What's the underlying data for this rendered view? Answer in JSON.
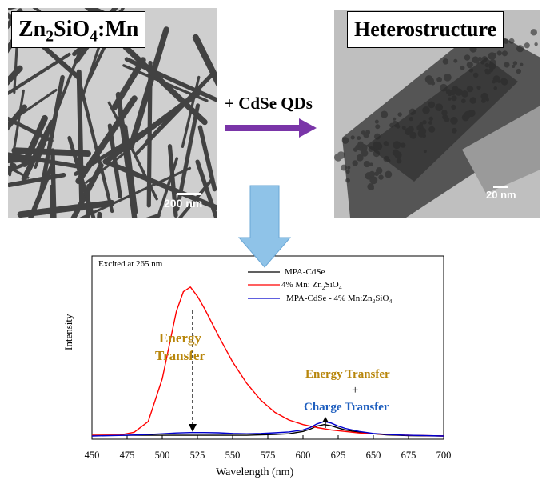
{
  "left_panel": {
    "label_main": "Zn",
    "label_sub1": "2",
    "label_mid": "SiO",
    "label_sub2": "4",
    "label_tail": ":Mn",
    "scale_text": "200 nm"
  },
  "right_panel": {
    "label": "Heterostructure",
    "scale_text": "20 nm"
  },
  "reaction": {
    "text": "+ CdSe QDs",
    "arrow_color": "#7a35a8"
  },
  "down_arrow_color": "#8fc3e8",
  "annotations": {
    "energy_transfer_line1": "Energy",
    "energy_transfer_line2": "Transfer",
    "energy_transfer_combined": "Energy Transfer",
    "plus": "+",
    "charge_transfer": "Charge Transfer"
  },
  "chart_data": {
    "type": "line",
    "title": "",
    "annotation": "Excited at 265 nm",
    "xlabel": "Wavelength (nm)",
    "ylabel": "Intensity",
    "xlim": [
      450,
      700
    ],
    "ylim": [
      0,
      1.0
    ],
    "xticks": [
      "450",
      "475",
      "500",
      "525",
      "550",
      "575",
      "600",
      "625",
      "650",
      "675",
      "700"
    ],
    "legend_position": "top-right",
    "series": [
      {
        "name": "MPA-CdSe",
        "color": "#000000",
        "x": [
          450,
          475,
          500,
          520,
          540,
          560,
          580,
          590,
          600,
          605,
          610,
          615,
          620,
          625,
          630,
          640,
          650,
          660,
          675,
          700
        ],
        "y": [
          0.01,
          0.01,
          0.01,
          0.01,
          0.01,
          0.01,
          0.015,
          0.02,
          0.035,
          0.05,
          0.07,
          0.08,
          0.072,
          0.058,
          0.045,
          0.03,
          0.02,
          0.012,
          0.008,
          0.005
        ]
      },
      {
        "name": "4% Mn: Zn2SiO4",
        "color": "#ff0000",
        "x": [
          450,
          470,
          480,
          490,
          500,
          505,
          510,
          515,
          520,
          525,
          530,
          540,
          550,
          560,
          570,
          580,
          590,
          600,
          610,
          620,
          630,
          640,
          650,
          660,
          675,
          700
        ],
        "y": [
          0.01,
          0.012,
          0.03,
          0.1,
          0.38,
          0.6,
          0.82,
          0.95,
          0.98,
          0.92,
          0.84,
          0.66,
          0.49,
          0.35,
          0.24,
          0.16,
          0.11,
          0.08,
          0.06,
          0.045,
          0.035,
          0.025,
          0.02,
          0.015,
          0.01,
          0.005
        ]
      },
      {
        "name": "MPA-CdSe - 4% Mn:Zn2SiO4",
        "color": "#0000cc",
        "x": [
          450,
          475,
          490,
          500,
          510,
          520,
          530,
          540,
          550,
          560,
          570,
          580,
          590,
          600,
          605,
          610,
          615,
          620,
          625,
          630,
          640,
          650,
          660,
          675,
          700
        ],
        "y": [
          0.005,
          0.01,
          0.015,
          0.02,
          0.025,
          0.028,
          0.028,
          0.026,
          0.022,
          0.02,
          0.022,
          0.026,
          0.032,
          0.045,
          0.06,
          0.085,
          0.1,
          0.09,
          0.07,
          0.055,
          0.035,
          0.022,
          0.015,
          0.01,
          0.005
        ]
      }
    ]
  }
}
